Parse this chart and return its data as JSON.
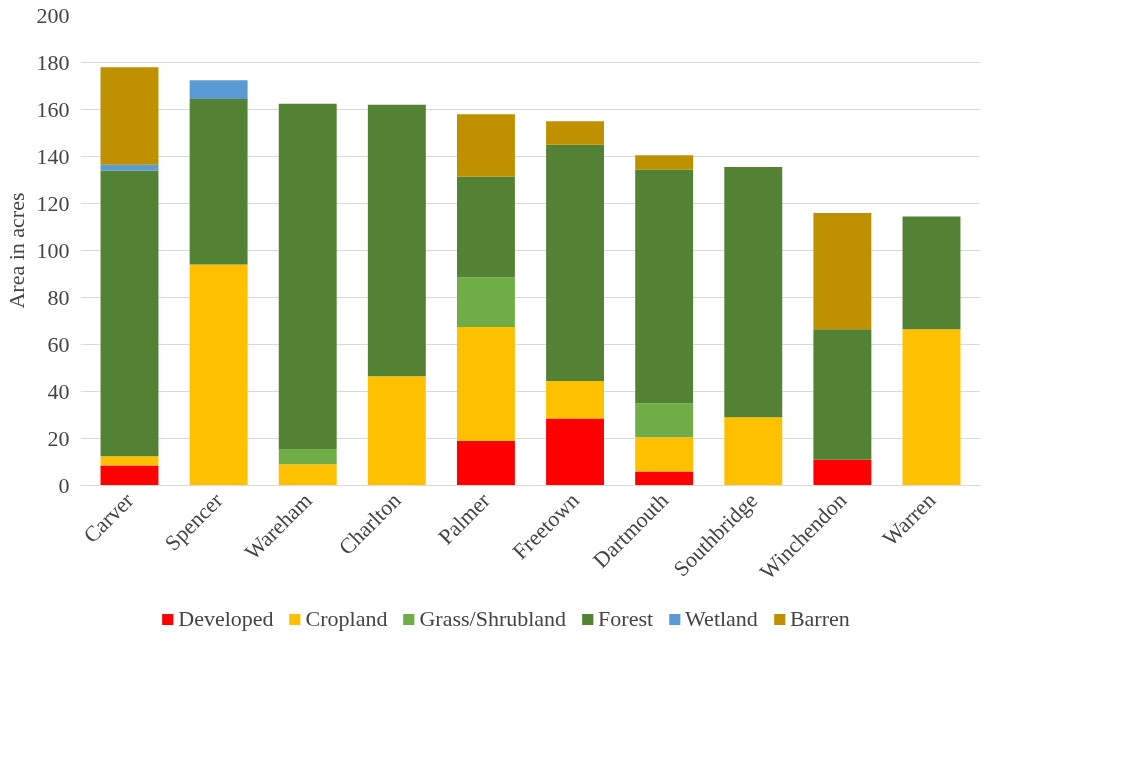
{
  "chart_data": {
    "type": "bar",
    "stacked": true,
    "ylabel": "Area in acres",
    "categories": [
      "Carver",
      "Spencer",
      "Wareham",
      "Charlton",
      "Palmer",
      "Freetown",
      "Dartmouth",
      "Southbridge",
      "Winchendon",
      "Warren"
    ],
    "series": [
      {
        "name": "Developed",
        "color": "#ff0000",
        "values": [
          8.5,
          null,
          null,
          null,
          19,
          28.5,
          6,
          null,
          11,
          null
        ]
      },
      {
        "name": "Cropland",
        "color": "#ffc000",
        "values": [
          4,
          94,
          9,
          46.5,
          48.5,
          16,
          14.5,
          29,
          null,
          66.5
        ]
      },
      {
        "name": "Grass/Shrubland",
        "color": "#70ad47",
        "values": [
          null,
          null,
          6.5,
          null,
          21,
          null,
          14.5,
          null,
          null,
          null
        ]
      },
      {
        "name": "Forest",
        "color": "#548235",
        "values": [
          121.5,
          70.5,
          147,
          115.5,
          43,
          100.5,
          99.5,
          106.5,
          55.5,
          48
        ]
      },
      {
        "name": "Wetland",
        "color": "#5b9bd5",
        "values": [
          2.5,
          8,
          null,
          null,
          null,
          null,
          null,
          null,
          null,
          null
        ]
      },
      {
        "name": "Barren",
        "color": "#bf9000",
        "values": [
          41.5,
          null,
          null,
          null,
          26.5,
          10,
          6,
          null,
          49.5,
          null
        ]
      }
    ],
    "ylim": [
      0,
      200
    ],
    "yticks": [
      0,
      20,
      40,
      60,
      80,
      100,
      120,
      140,
      160,
      180,
      200
    ],
    "grid": "y",
    "legend": "bottom"
  }
}
